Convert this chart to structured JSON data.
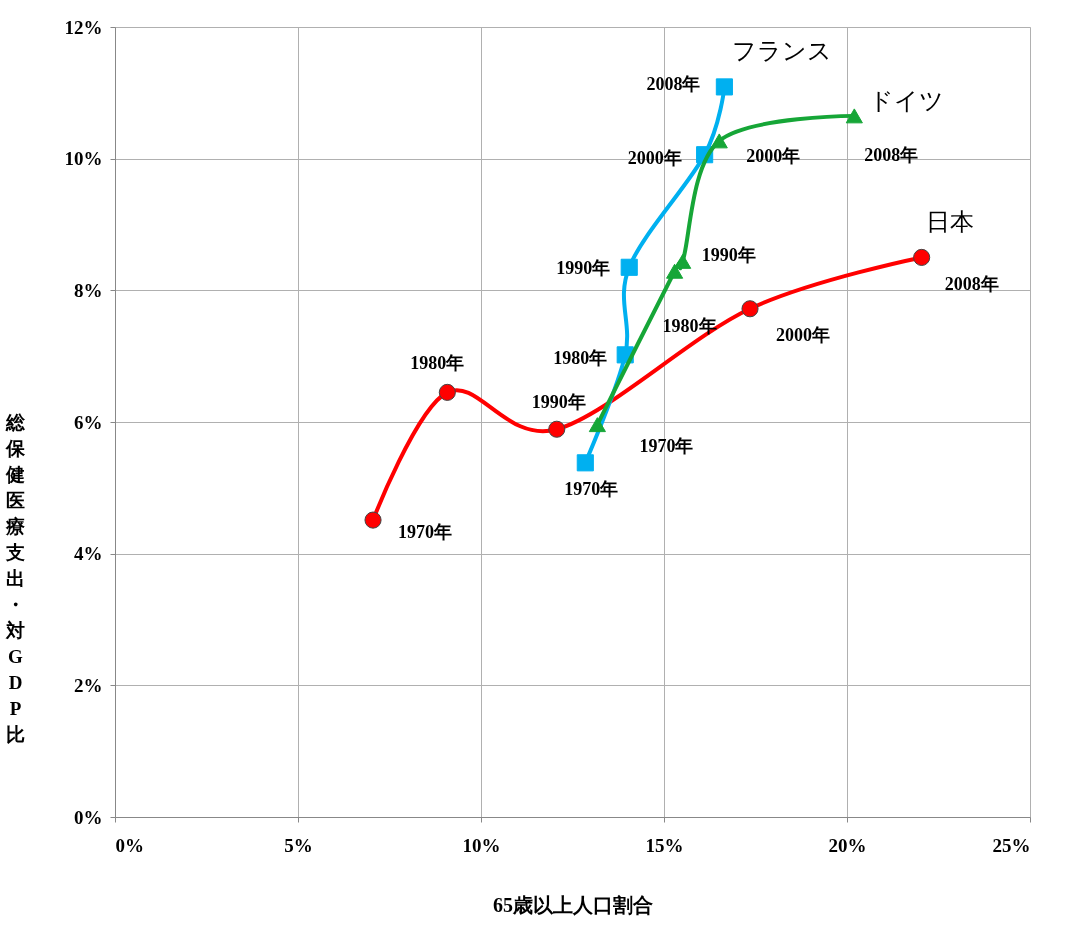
{
  "chart_data": {
    "type": "line",
    "xlabel": "65歳以上人口割合",
    "ylabel": "総保健医療支出・対GDP比",
    "xlim": [
      0,
      25
    ],
    "ylim": [
      0,
      12
    ],
    "xticks": [
      {
        "value": 0,
        "label": "0%"
      },
      {
        "value": 5,
        "label": "5%"
      },
      {
        "value": 10,
        "label": "10%"
      },
      {
        "value": 15,
        "label": "15%"
      },
      {
        "value": 20,
        "label": "20%"
      },
      {
        "value": 25,
        "label": "25%"
      }
    ],
    "yticks": [
      {
        "value": 0,
        "label": "0%"
      },
      {
        "value": 2,
        "label": "2%"
      },
      {
        "value": 4,
        "label": "4%"
      },
      {
        "value": 6,
        "label": "6%"
      },
      {
        "value": 8,
        "label": "8%"
      },
      {
        "value": 10,
        "label": "10%"
      },
      {
        "value": 12,
        "label": "12%"
      }
    ],
    "grid": true,
    "legend": false,
    "line_style": "solid",
    "series": [
      {
        "name": "日本",
        "color": "#ff0000",
        "marker": "circle",
        "x": [
          7.05,
          9.08,
          12.07,
          17.35,
          22.04
        ],
        "values": [
          4.51,
          6.45,
          5.89,
          7.72,
          8.5
        ]
      },
      {
        "name": "フランス",
        "color": "#00b0f0",
        "marker": "square",
        "x": [
          12.85,
          13.94,
          14.05,
          16.11,
          16.65
        ],
        "values": [
          5.38,
          7.02,
          8.35,
          10.06,
          11.09
        ]
      },
      {
        "name": "ドイツ",
        "color": "#16a637",
        "marker": "triangle",
        "x": [
          13.18,
          15.29,
          15.51,
          16.51,
          20.2
        ],
        "values": [
          5.96,
          8.29,
          8.44,
          10.27,
          10.65
        ]
      }
    ],
    "annotations": [
      {
        "text": "1970年",
        "x": 7.05,
        "y": 4.51
      },
      {
        "text": "1980年",
        "x": 9.08,
        "y": 6.45
      },
      {
        "text": "1990年",
        "x": 12.07,
        "y": 5.89
      },
      {
        "text": "2000年",
        "x": 17.35,
        "y": 7.72
      },
      {
        "text": "2008年",
        "x": 22.04,
        "y": 8.5
      },
      {
        "text": "1970年",
        "x": 12.85,
        "y": 5.38
      },
      {
        "text": "1980年",
        "x": 13.94,
        "y": 7.02
      },
      {
        "text": "1990年",
        "x": 14.05,
        "y": 8.35
      },
      {
        "text": "2000年",
        "x": 16.11,
        "y": 10.06
      },
      {
        "text": "2008年",
        "x": 16.65,
        "y": 11.09
      },
      {
        "text": "1970年",
        "x": 13.18,
        "y": 5.96
      },
      {
        "text": "1980年",
        "x": 15.29,
        "y": 8.29
      },
      {
        "text": "1990年",
        "x": 15.51,
        "y": 8.44
      },
      {
        "text": "2000年",
        "x": 16.51,
        "y": 10.27
      },
      {
        "text": "2008年",
        "x": 20.2,
        "y": 10.65
      }
    ]
  }
}
